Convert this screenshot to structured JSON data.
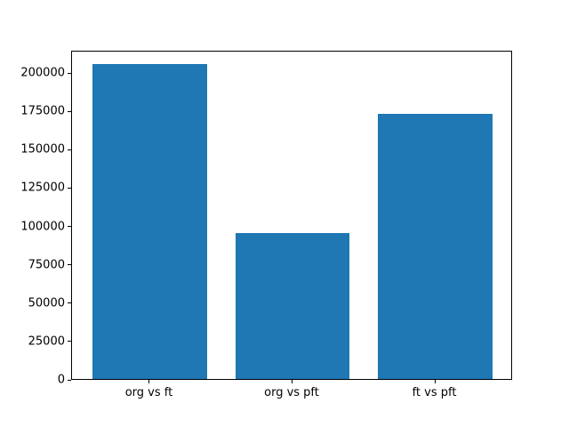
{
  "chart_data": {
    "type": "bar",
    "title": "",
    "xlabel": "",
    "ylabel": "",
    "categories": [
      "org vs ft",
      "org vs pft",
      "ft vs pft"
    ],
    "values": [
      205000,
      95000,
      173000
    ],
    "yticks": [
      0,
      25000,
      50000,
      75000,
      100000,
      125000,
      150000,
      175000,
      200000
    ],
    "ytick_labels": [
      "0",
      "25000",
      "50000",
      "75000",
      "100000",
      "125000",
      "150000",
      "175000",
      "200000"
    ],
    "ylim": [
      0,
      214500
    ],
    "xlim": [
      -0.545,
      2.545
    ],
    "bar_width_fraction": 0.8,
    "bar_color": "#1f77b4",
    "axis_color": "#000000",
    "background_color": "#ffffff",
    "grid": false,
    "legend": null
  }
}
